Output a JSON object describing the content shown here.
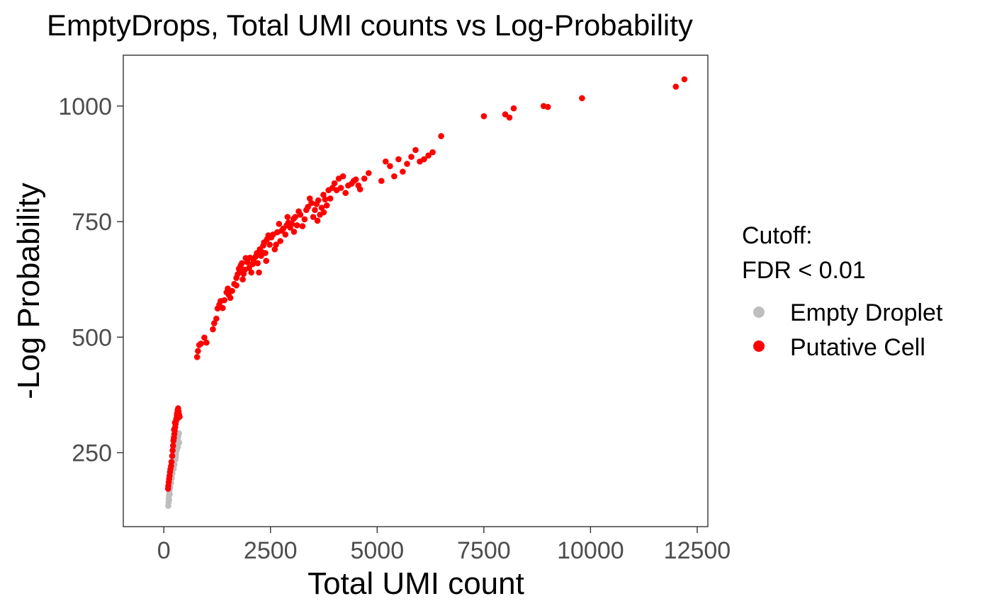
{
  "chart_data": {
    "type": "scatter",
    "title": "EmptyDrops, Total UMI counts vs Log-Probability",
    "xlabel": "Total UMI count",
    "ylabel": "-Log Probability",
    "xlim": [
      -950,
      12750
    ],
    "ylim": [
      90,
      1110
    ],
    "x_ticks": [
      0,
      2500,
      5000,
      7500,
      10000,
      12500
    ],
    "y_ticks": [
      250,
      500,
      750,
      1000
    ],
    "grid": false,
    "legend": {
      "title_lines": [
        "Cutoff:",
        "FDR < 0.01"
      ],
      "placement": "right"
    },
    "series": [
      {
        "name": "Empty Droplet",
        "color": "#bebebe",
        "points": [
          [
            105,
            135
          ],
          [
            110,
            142
          ],
          [
            115,
            150
          ],
          [
            120,
            156
          ],
          [
            125,
            160
          ],
          [
            128,
            165
          ],
          [
            135,
            170
          ],
          [
            140,
            176
          ],
          [
            150,
            181
          ],
          [
            155,
            186
          ],
          [
            160,
            190
          ],
          [
            165,
            194
          ],
          [
            175,
            199
          ],
          [
            180,
            203
          ],
          [
            190,
            207
          ],
          [
            200,
            212
          ],
          [
            210,
            216
          ],
          [
            215,
            221
          ],
          [
            225,
            227
          ],
          [
            235,
            232
          ],
          [
            245,
            238
          ],
          [
            255,
            243
          ],
          [
            265,
            248
          ],
          [
            275,
            254
          ],
          [
            290,
            259
          ],
          [
            300,
            265
          ],
          [
            310,
            270
          ],
          [
            320,
            276
          ],
          [
            330,
            282
          ],
          [
            340,
            287
          ],
          [
            355,
            292
          ],
          [
            150,
            175
          ],
          [
            170,
            185
          ],
          [
            185,
            195
          ],
          [
            230,
            215
          ],
          [
            250,
            224
          ],
          [
            270,
            235
          ],
          [
            285,
            246
          ],
          [
            300,
            255
          ],
          [
            330,
            262
          ],
          [
            360,
            272
          ],
          [
            140,
            160
          ],
          [
            125,
            148
          ],
          [
            200,
            205
          ],
          [
            280,
            240
          ]
        ]
      },
      {
        "name": "Putative Cell",
        "color": "#ff0000",
        "points": [
          [
            100,
            172
          ],
          [
            105,
            178
          ],
          [
            115,
            186
          ],
          [
            125,
            193
          ],
          [
            135,
            200
          ],
          [
            145,
            208
          ],
          [
            155,
            214
          ],
          [
            170,
            221
          ],
          [
            180,
            230
          ],
          [
            195,
            243
          ],
          [
            205,
            255
          ],
          [
            215,
            265
          ],
          [
            225,
            276
          ],
          [
            235,
            282
          ],
          [
            245,
            290
          ],
          [
            255,
            298
          ],
          [
            265,
            305
          ],
          [
            275,
            312
          ],
          [
            285,
            318
          ],
          [
            295,
            324
          ],
          [
            305,
            330
          ],
          [
            315,
            336
          ],
          [
            325,
            342
          ],
          [
            335,
            346
          ],
          [
            345,
            339
          ],
          [
            355,
            333
          ],
          [
            370,
            328
          ],
          [
            240,
            300
          ],
          [
            260,
            315
          ],
          [
            290,
            322
          ],
          [
            310,
            334
          ],
          [
            330,
            325
          ],
          [
            780,
            457
          ],
          [
            800,
            470
          ],
          [
            830,
            483
          ],
          [
            870,
            486
          ],
          [
            950,
            499
          ],
          [
            1000,
            488
          ],
          [
            1150,
            517
          ],
          [
            1180,
            530
          ],
          [
            1230,
            540
          ],
          [
            1260,
            562
          ],
          [
            1300,
            570
          ],
          [
            1330,
            578
          ],
          [
            1380,
            563
          ],
          [
            1420,
            580
          ],
          [
            1470,
            597
          ],
          [
            1500,
            605
          ],
          [
            1520,
            592
          ],
          [
            1560,
            585
          ],
          [
            1600,
            600
          ],
          [
            1650,
            615
          ],
          [
            1700,
            628
          ],
          [
            1730,
            636
          ],
          [
            1760,
            648
          ],
          [
            1780,
            642
          ],
          [
            1800,
            655
          ],
          [
            1830,
            660
          ],
          [
            1850,
            625
          ],
          [
            1870,
            637
          ],
          [
            1900,
            646
          ],
          [
            1920,
            671
          ],
          [
            1960,
            662
          ],
          [
            2000,
            650
          ],
          [
            2020,
            672
          ],
          [
            2050,
            640
          ],
          [
            2080,
            658
          ],
          [
            2100,
            668
          ],
          [
            2150,
            674
          ],
          [
            2180,
            682
          ],
          [
            2200,
            660
          ],
          [
            2230,
            640
          ],
          [
            2250,
            690
          ],
          [
            2280,
            676
          ],
          [
            2300,
            684
          ],
          [
            2330,
            698
          ],
          [
            2350,
            705
          ],
          [
            2380,
            682
          ],
          [
            2420,
            712
          ],
          [
            2450,
            720
          ],
          [
            2480,
            700
          ],
          [
            2520,
            716
          ],
          [
            2560,
            722
          ],
          [
            2600,
            690
          ],
          [
            2630,
            700
          ],
          [
            2660,
            727
          ],
          [
            2700,
            745
          ],
          [
            2730,
            708
          ],
          [
            2760,
            730
          ],
          [
            2800,
            735
          ],
          [
            2850,
            722
          ],
          [
            2880,
            742
          ],
          [
            2920,
            748
          ],
          [
            2960,
            737
          ],
          [
            3000,
            745
          ],
          [
            3040,
            756
          ],
          [
            3080,
            760
          ],
          [
            3120,
            742
          ],
          [
            3160,
            772
          ],
          [
            3200,
            765
          ],
          [
            3250,
            740
          ],
          [
            3300,
            755
          ],
          [
            3340,
            775
          ],
          [
            3380,
            782
          ],
          [
            3420,
            800
          ],
          [
            3460,
            790
          ],
          [
            3500,
            760
          ],
          [
            3540,
            775
          ],
          [
            3580,
            788
          ],
          [
            3620,
            796
          ],
          [
            3660,
            765
          ],
          [
            3700,
            780
          ],
          [
            3740,
            808
          ],
          [
            3780,
            798
          ],
          [
            3820,
            785
          ],
          [
            3860,
            818
          ],
          [
            3900,
            800
          ],
          [
            3950,
            823
          ],
          [
            4000,
            833
          ],
          [
            4050,
            818
          ],
          [
            4100,
            843
          ],
          [
            4150,
            823
          ],
          [
            4200,
            848
          ],
          [
            4260,
            812
          ],
          [
            4320,
            828
          ],
          [
            4400,
            832
          ],
          [
            4450,
            838
          ],
          [
            4500,
            841
          ],
          [
            4560,
            828
          ],
          [
            4700,
            843
          ],
          [
            4800,
            855
          ],
          [
            5100,
            838
          ],
          [
            5200,
            880
          ],
          [
            5300,
            870
          ],
          [
            5400,
            848
          ],
          [
            5500,
            885
          ],
          [
            5600,
            858
          ],
          [
            5700,
            875
          ],
          [
            5800,
            890
          ],
          [
            5900,
            905
          ],
          [
            6000,
            880
          ],
          [
            6100,
            885
          ],
          [
            6200,
            893
          ],
          [
            6300,
            900
          ],
          [
            6500,
            935
          ],
          [
            7500,
            978
          ],
          [
            8000,
            982
          ],
          [
            8100,
            975
          ],
          [
            8200,
            995
          ],
          [
            8900,
            1000
          ],
          [
            9000,
            998
          ],
          [
            9800,
            1017
          ],
          [
            12000,
            1042
          ],
          [
            12200,
            1058
          ],
          [
            2400,
            665
          ],
          [
            3050,
            728
          ],
          [
            3600,
            752
          ],
          [
            4600,
            820
          ],
          [
            1700,
            612
          ],
          [
            2900,
            760
          ],
          [
            3750,
            770
          ]
        ]
      }
    ]
  }
}
